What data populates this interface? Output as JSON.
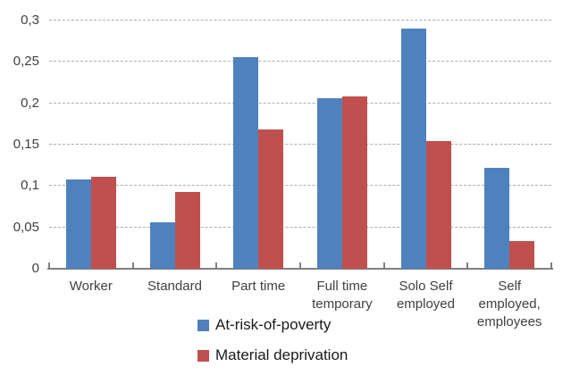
{
  "chart_data": {
    "type": "bar",
    "title": "",
    "xlabel": "",
    "ylabel": "",
    "categories": [
      "Worker",
      "Standard",
      "Part time",
      "Full time temporary",
      "Solo Self employed",
      "Self employed, employees"
    ],
    "category_lines": [
      [
        "Worker"
      ],
      [
        "Standard"
      ],
      [
        "Part time"
      ],
      [
        "Full time",
        "temporary"
      ],
      [
        "Solo Self",
        "employed"
      ],
      [
        "Self",
        "employed,",
        "employees"
      ]
    ],
    "series": [
      {
        "name": "At-risk-of-poverty",
        "color": "#4F81BD",
        "values": [
          0.108,
          0.056,
          0.256,
          0.206,
          0.29,
          0.122
        ]
      },
      {
        "name": "Material deprivation",
        "color": "#C0504D",
        "values": [
          0.111,
          0.093,
          0.168,
          0.208,
          0.154,
          0.033
        ]
      }
    ],
    "ylim": [
      0,
      0.3
    ],
    "ytick_step": 0.05,
    "ytick_labels": [
      "0",
      "0,05",
      "0,1",
      "0,15",
      "0,2",
      "0,25",
      "0,3"
    ],
    "grid": "horizontal-dashed",
    "legend_position": "bottom"
  },
  "colors": {
    "background": "#FFFFFF",
    "gridline": "#ADADAD",
    "axis": "#7F7F7F",
    "tick": "#7F7F7F",
    "axis_label_text": "#404040",
    "legend_text": "#1A1A1A",
    "series_blue": "#4F81BD",
    "series_red": "#C0504D"
  }
}
